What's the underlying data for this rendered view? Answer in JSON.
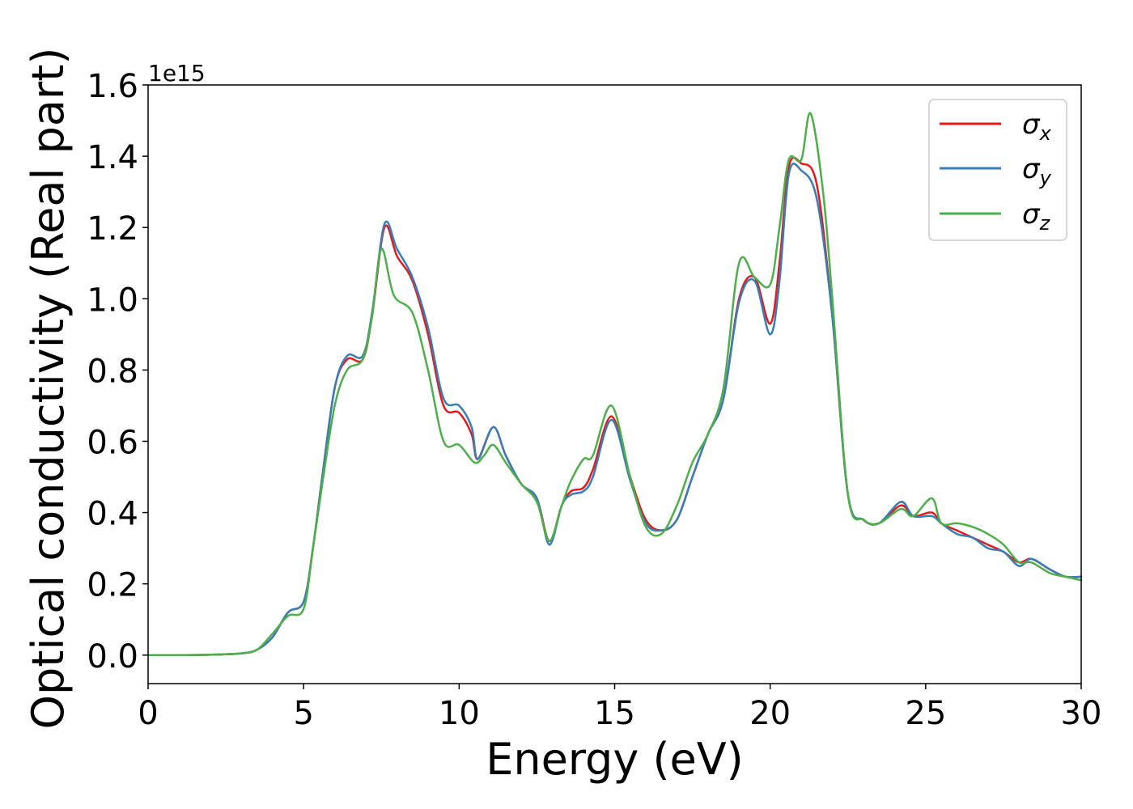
{
  "chart_data": {
    "type": "line",
    "title": "",
    "xlabel": "Energy (eV)",
    "ylabel": "Optical conductivity (Real part)",
    "y_offset_text": "1e15",
    "xlim": [
      0,
      30
    ],
    "ylim": [
      -0.08,
      1.6
    ],
    "xticks": [
      0,
      5,
      10,
      15,
      20,
      25,
      30
    ],
    "xtick_labels": [
      "0",
      "5",
      "10",
      "15",
      "20",
      "25",
      "30"
    ],
    "yticks": [
      0.0,
      0.2,
      0.4,
      0.6,
      0.8,
      1.0,
      1.2,
      1.4,
      1.6
    ],
    "ytick_labels": [
      "0.0",
      "0.2",
      "0.4",
      "0.6",
      "0.8",
      "1.0",
      "1.2",
      "1.4",
      "1.6"
    ],
    "grid": false,
    "legend_position": "top-right",
    "series": [
      {
        "name": "σx",
        "symbol": "σ",
        "subscript": "x",
        "color": "#e41a1c",
        "x": [
          0,
          1,
          2,
          3,
          3.5,
          4,
          4.5,
          5,
          5.3,
          5.6,
          6,
          6.4,
          6.9,
          7.2,
          7.6,
          8,
          8.5,
          9,
          9.5,
          10,
          10.4,
          10.6,
          11.1,
          11.5,
          12,
          12.5,
          12.9,
          13.3,
          13.6,
          14,
          14.3,
          14.9,
          15.5,
          16,
          16.5,
          17,
          17.5,
          18,
          18.5,
          19,
          19.5,
          20,
          20.3,
          20.6,
          21,
          21.5,
          22,
          22.5,
          23,
          23.5,
          24.2,
          24.6,
          25.2,
          25.5,
          26,
          26.5,
          27,
          27.5,
          28,
          28.4,
          29,
          29.5,
          30
        ],
        "values": [
          0.0,
          0.0,
          0.001,
          0.005,
          0.015,
          0.05,
          0.12,
          0.15,
          0.3,
          0.5,
          0.75,
          0.83,
          0.83,
          0.95,
          1.2,
          1.12,
          1.05,
          0.9,
          0.7,
          0.68,
          0.62,
          0.55,
          0.64,
          0.56,
          0.48,
          0.44,
          0.32,
          0.42,
          0.46,
          0.47,
          0.52,
          0.67,
          0.5,
          0.38,
          0.35,
          0.38,
          0.5,
          0.62,
          0.72,
          1.0,
          1.06,
          0.93,
          1.1,
          1.37,
          1.38,
          1.32,
          0.95,
          0.45,
          0.38,
          0.37,
          0.42,
          0.39,
          0.4,
          0.37,
          0.35,
          0.33,
          0.31,
          0.29,
          0.26,
          0.27,
          0.24,
          0.22,
          0.22
        ]
      },
      {
        "name": "σy",
        "symbol": "σ",
        "subscript": "y",
        "color": "#377eb8",
        "x": [
          0,
          1,
          2,
          3,
          3.5,
          4,
          4.5,
          5,
          5.3,
          5.6,
          6,
          6.4,
          6.9,
          7.2,
          7.6,
          8,
          8.5,
          9,
          9.5,
          10,
          10.4,
          10.6,
          11.1,
          11.5,
          12,
          12.5,
          12.9,
          13.3,
          13.6,
          14,
          14.3,
          14.9,
          15.5,
          16,
          16.5,
          17,
          17.5,
          18,
          18.5,
          19,
          19.5,
          20,
          20.3,
          20.6,
          21,
          21.5,
          22,
          22.5,
          23,
          23.5,
          24.2,
          24.6,
          25.2,
          25.5,
          26,
          26.5,
          27,
          27.5,
          28,
          28.4,
          29,
          29.5,
          30
        ],
        "values": [
          0.0,
          0.0,
          0.001,
          0.005,
          0.015,
          0.05,
          0.12,
          0.15,
          0.3,
          0.5,
          0.75,
          0.84,
          0.84,
          0.96,
          1.21,
          1.14,
          1.06,
          0.92,
          0.72,
          0.7,
          0.64,
          0.55,
          0.64,
          0.56,
          0.48,
          0.44,
          0.31,
          0.42,
          0.45,
          0.46,
          0.5,
          0.66,
          0.49,
          0.37,
          0.35,
          0.38,
          0.5,
          0.62,
          0.72,
          0.99,
          1.05,
          0.9,
          1.05,
          1.35,
          1.36,
          1.28,
          0.95,
          0.45,
          0.38,
          0.37,
          0.43,
          0.39,
          0.39,
          0.37,
          0.34,
          0.33,
          0.3,
          0.29,
          0.25,
          0.27,
          0.24,
          0.22,
          0.22
        ]
      },
      {
        "name": "σz",
        "symbol": "σ",
        "subscript": "z",
        "color": "#4daf4a",
        "x": [
          0,
          1,
          2,
          3,
          3.5,
          4,
          4.5,
          5,
          5.3,
          5.6,
          6,
          6.4,
          6.9,
          7.2,
          7.5,
          7.9,
          8.5,
          9,
          9.5,
          10,
          10.5,
          10.8,
          11.1,
          11.5,
          12,
          12.5,
          12.9,
          13.3,
          13.6,
          14,
          14.3,
          14.9,
          15.5,
          16,
          16.5,
          17,
          17.5,
          18,
          18.5,
          19,
          19.5,
          20,
          20.3,
          20.6,
          21,
          21.3,
          21.7,
          22,
          22.5,
          23,
          23.5,
          24.2,
          24.6,
          25.2,
          25.5,
          26,
          26.5,
          27,
          27.5,
          28,
          28.4,
          29,
          29.5,
          30
        ],
        "values": [
          0.0,
          0.0,
          0.001,
          0.005,
          0.015,
          0.06,
          0.11,
          0.13,
          0.3,
          0.48,
          0.7,
          0.8,
          0.83,
          0.95,
          1.14,
          1.01,
          0.96,
          0.8,
          0.6,
          0.59,
          0.54,
          0.56,
          0.59,
          0.54,
          0.48,
          0.43,
          0.32,
          0.42,
          0.49,
          0.55,
          0.56,
          0.7,
          0.5,
          0.36,
          0.34,
          0.42,
          0.54,
          0.62,
          0.75,
          1.1,
          1.06,
          1.04,
          1.2,
          1.39,
          1.39,
          1.52,
          1.3,
          1.0,
          0.45,
          0.38,
          0.37,
          0.41,
          0.39,
          0.44,
          0.37,
          0.37,
          0.36,
          0.34,
          0.31,
          0.26,
          0.26,
          0.23,
          0.22,
          0.21
        ]
      }
    ]
  }
}
